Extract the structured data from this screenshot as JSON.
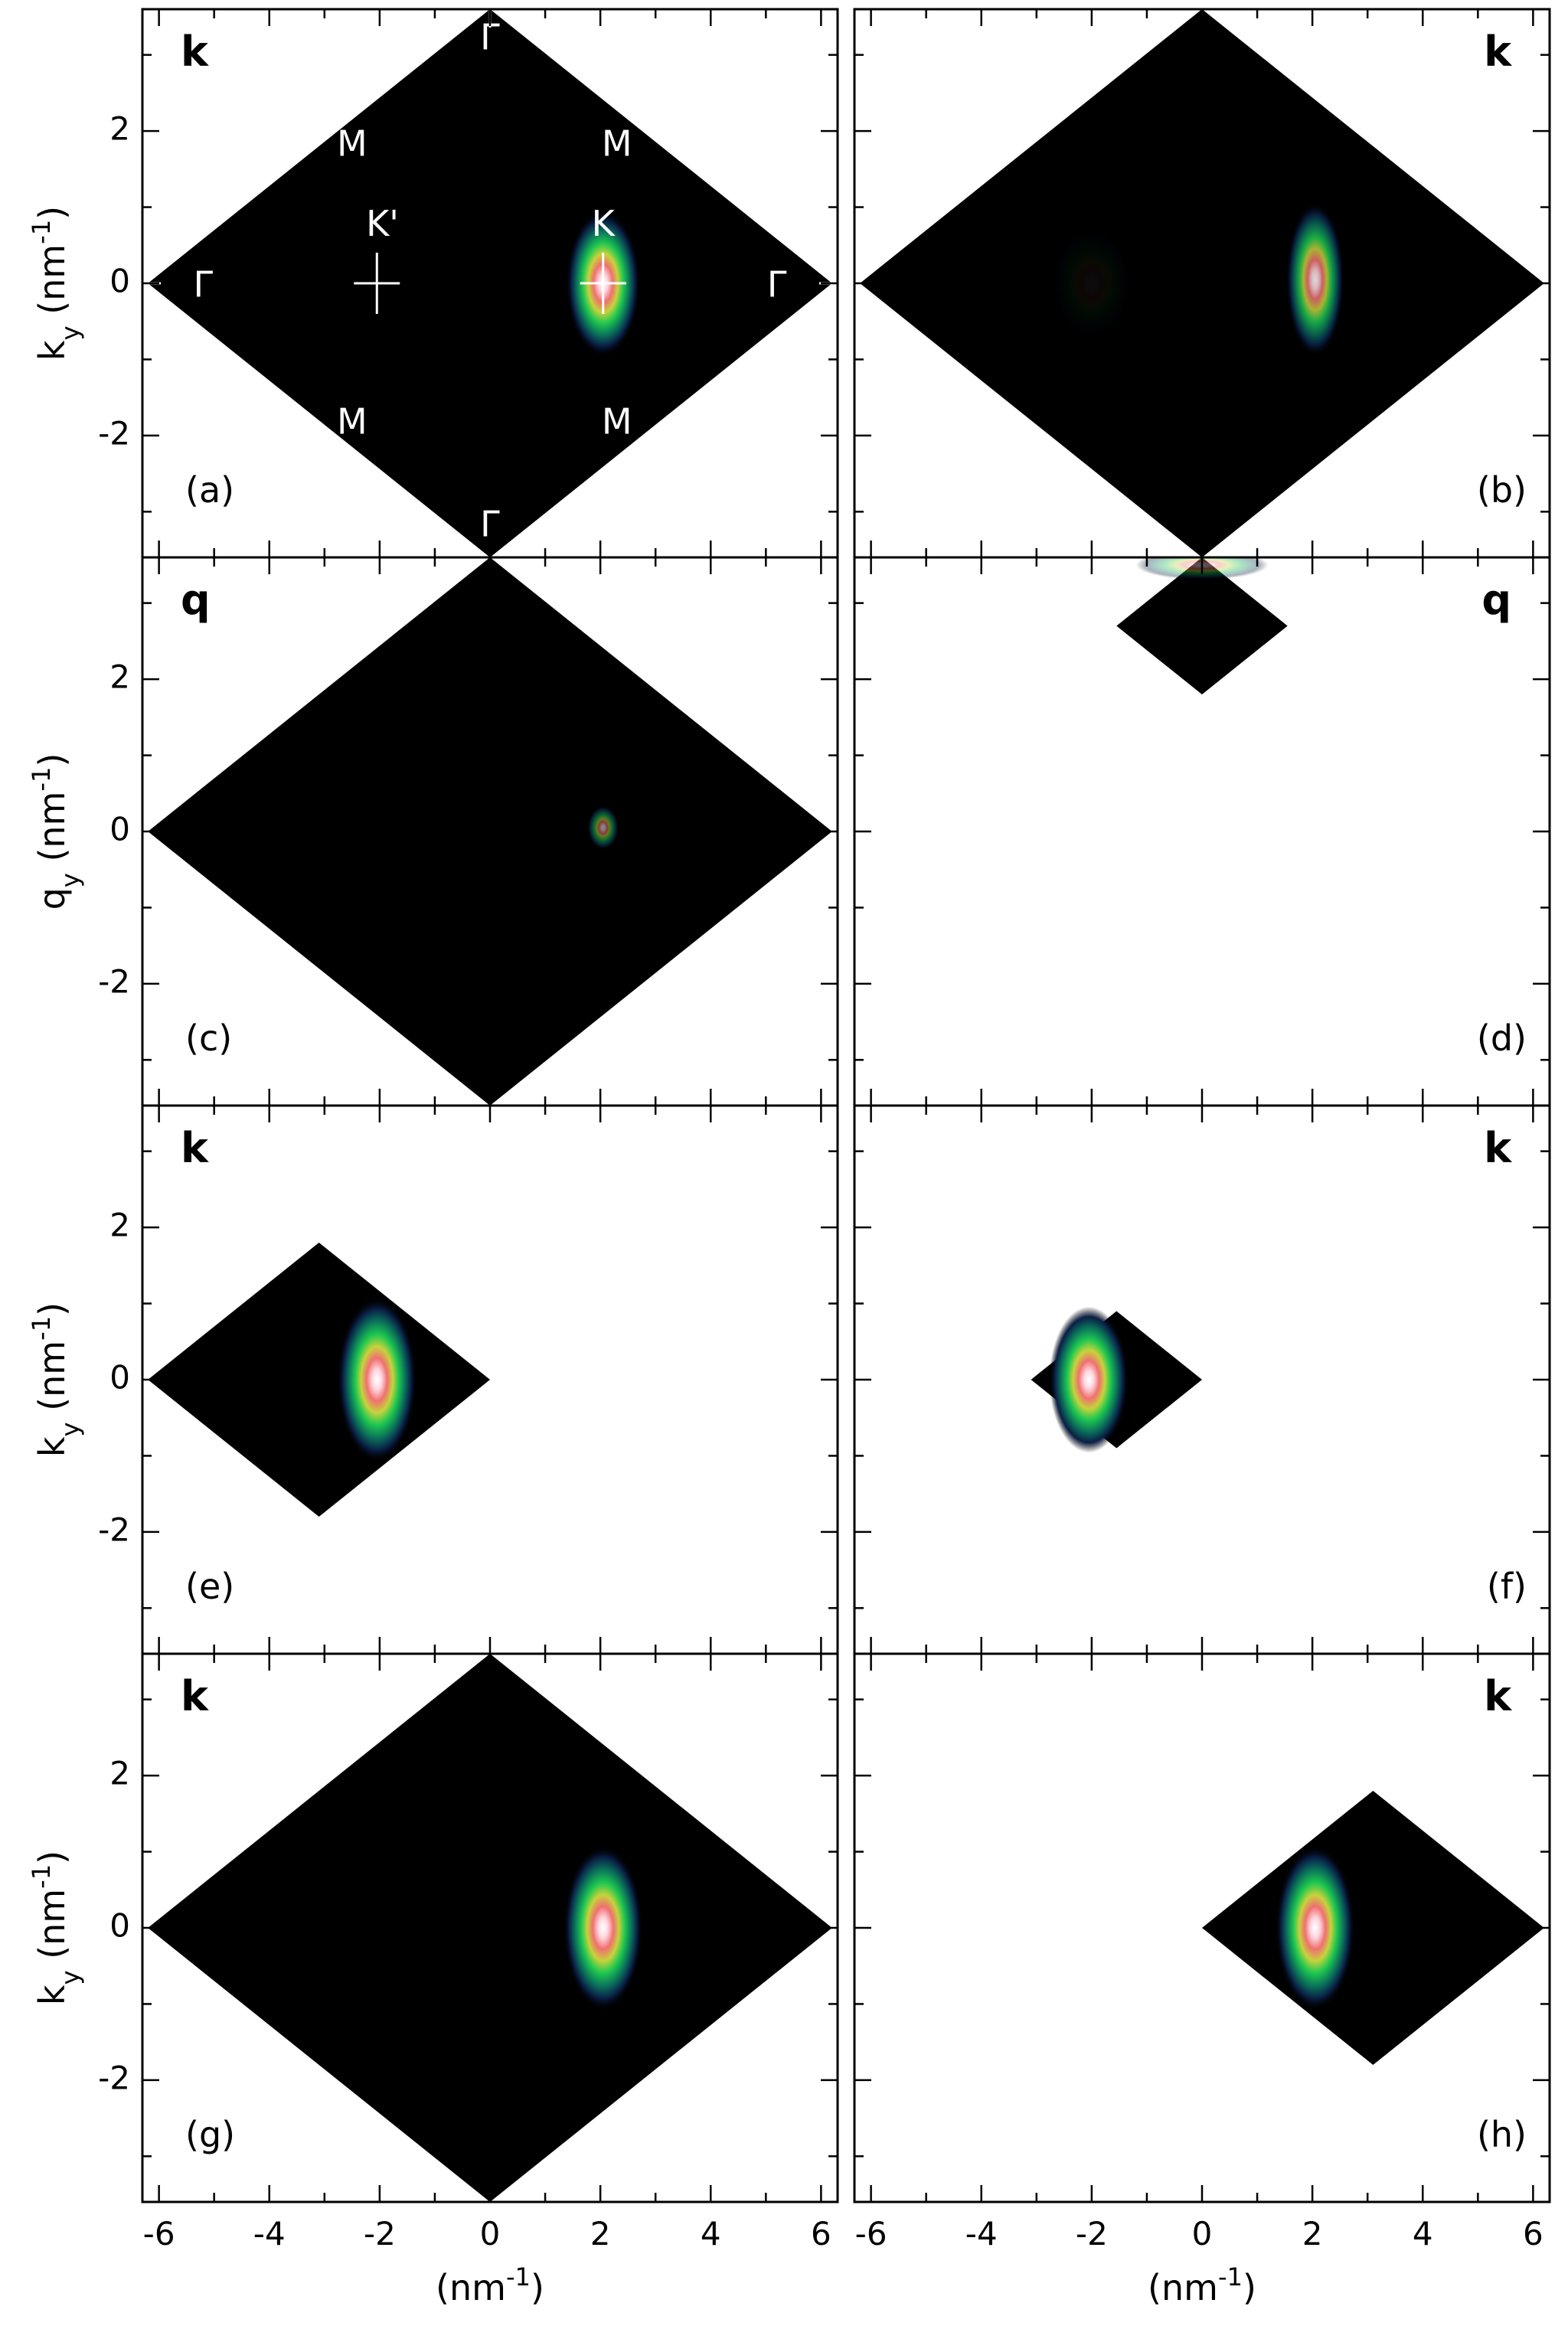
{
  "figure": {
    "xlabel_html": "(nm<tspan baseline-shift='super' font-size='70%'>-1</tspan>)",
    "xlabel_text": "(nm-1)",
    "x_ticks": [
      -6,
      -4,
      -2,
      0,
      2,
      4,
      6
    ],
    "y_ticks": [
      -2,
      0,
      2
    ],
    "xlim": [
      -6.3,
      6.3
    ],
    "ylim": [
      -3.6,
      3.6
    ]
  },
  "chart_data": [
    {
      "id": "a",
      "type": "heatmap",
      "panel_label": "(a)",
      "corner_label": "k",
      "corner_side": "left",
      "ylabel": "k_y (nm^-1)",
      "ylabel_var": "k",
      "show_ylabel": true,
      "region": {
        "center": [
          0,
          0
        ],
        "half_width": 6.2,
        "half_height": 3.6
      },
      "peaks": [
        {
          "x": 2.05,
          "y": 0,
          "intensity": 1.0,
          "sx": 0.28,
          "sy": 0.4
        }
      ],
      "markers": [
        {
          "x": -2.05,
          "y": 0,
          "label": "K'"
        },
        {
          "x": 2.05,
          "y": 0,
          "label": "K"
        }
      ],
      "symmetry_labels": [
        {
          "text": "Γ",
          "x": 0,
          "y": 3.2
        },
        {
          "text": "Γ",
          "x": 0,
          "y": -3.2
        },
        {
          "text": "Γ",
          "x": -5.2,
          "y": -0.05
        },
        {
          "text": "Γ",
          "x": 5.2,
          "y": -0.05
        },
        {
          "text": "M",
          "x": -2.5,
          "y": 1.8
        },
        {
          "text": "M",
          "x": 2.3,
          "y": 1.8
        },
        {
          "text": "M",
          "x": -2.5,
          "y": -1.85
        },
        {
          "text": "M",
          "x": 2.3,
          "y": -1.85
        },
        {
          "text": "K'",
          "x": -1.95,
          "y": 0.75
        },
        {
          "text": "K",
          "x": 2.05,
          "y": 0.75
        }
      ]
    },
    {
      "id": "b",
      "type": "heatmap",
      "panel_label": "(b)",
      "corner_label": "k",
      "corner_side": "right",
      "show_ylabel": false,
      "region": {
        "center": [
          0,
          0
        ],
        "half_width": 6.2,
        "half_height": 3.6
      },
      "peaks": [
        {
          "x": 2.05,
          "y": 0.05,
          "intensity": 0.85,
          "sx": 0.22,
          "sy": 0.42
        },
        {
          "x": -2.0,
          "y": 0,
          "intensity": 0.05,
          "sx": 0.3,
          "sy": 0.3
        }
      ]
    },
    {
      "id": "c",
      "type": "heatmap",
      "panel_label": "(c)",
      "corner_label": "q",
      "corner_side": "left",
      "ylabel": "q_y (nm^-1)",
      "ylabel_var": "q",
      "show_ylabel": true,
      "region": {
        "center": [
          0,
          0
        ],
        "half_width": 6.2,
        "half_height": 3.6
      },
      "peaks": [
        {
          "x": 2.05,
          "y": 0.05,
          "intensity": 0.55,
          "sx": 0.12,
          "sy": 0.12
        }
      ]
    },
    {
      "id": "d",
      "type": "heatmap",
      "panel_label": "(d)",
      "corner_label": "q",
      "corner_side": "right",
      "show_ylabel": false,
      "region": {
        "center": [
          0,
          2.7
        ],
        "half_width": 1.55,
        "half_height": 0.9
      },
      "peaks": [
        {
          "x": 0,
          "y": 3.5,
          "intensity": 0.35,
          "sx": 0.5,
          "sy": 0.08
        }
      ]
    },
    {
      "id": "e",
      "type": "heatmap",
      "panel_label": "(e)",
      "corner_label": "k",
      "corner_side": "left",
      "ylabel": "k_y (nm^-1)",
      "ylabel_var": "k",
      "show_ylabel": true,
      "region": {
        "center": [
          -3.1,
          0
        ],
        "half_width": 3.1,
        "half_height": 1.8
      },
      "peaks": [
        {
          "x": -2.05,
          "y": 0,
          "intensity": 1.0,
          "sx": 0.3,
          "sy": 0.45
        }
      ]
    },
    {
      "id": "f",
      "type": "heatmap",
      "panel_label": "(f)",
      "corner_label": "k",
      "corner_side": "right",
      "show_ylabel": false,
      "region": {
        "center": [
          -1.55,
          0
        ],
        "half_width": 1.55,
        "half_height": 0.9
      },
      "peaks": [
        {
          "x": -2.05,
          "y": 0,
          "intensity": 1.0,
          "sx": 0.3,
          "sy": 0.4
        }
      ]
    },
    {
      "id": "g",
      "type": "heatmap",
      "panel_label": "(g)",
      "corner_label": "k",
      "corner_side": "left",
      "ylabel": "k_y (nm^-1)",
      "ylabel_var": "k",
      "show_ylabel": true,
      "region": {
        "center": [
          0,
          0
        ],
        "half_width": 6.2,
        "half_height": 3.6
      },
      "peaks": [
        {
          "x": 2.05,
          "y": 0,
          "intensity": 1.0,
          "sx": 0.3,
          "sy": 0.45
        }
      ]
    },
    {
      "id": "h",
      "type": "heatmap",
      "panel_label": "(h)",
      "corner_label": "k",
      "corner_side": "right",
      "show_ylabel": false,
      "region": {
        "center": [
          3.1,
          0
        ],
        "half_width": 3.1,
        "half_height": 1.8
      },
      "peaks": [
        {
          "x": 2.05,
          "y": 0,
          "intensity": 1.0,
          "sx": 0.3,
          "sy": 0.45
        }
      ]
    }
  ]
}
